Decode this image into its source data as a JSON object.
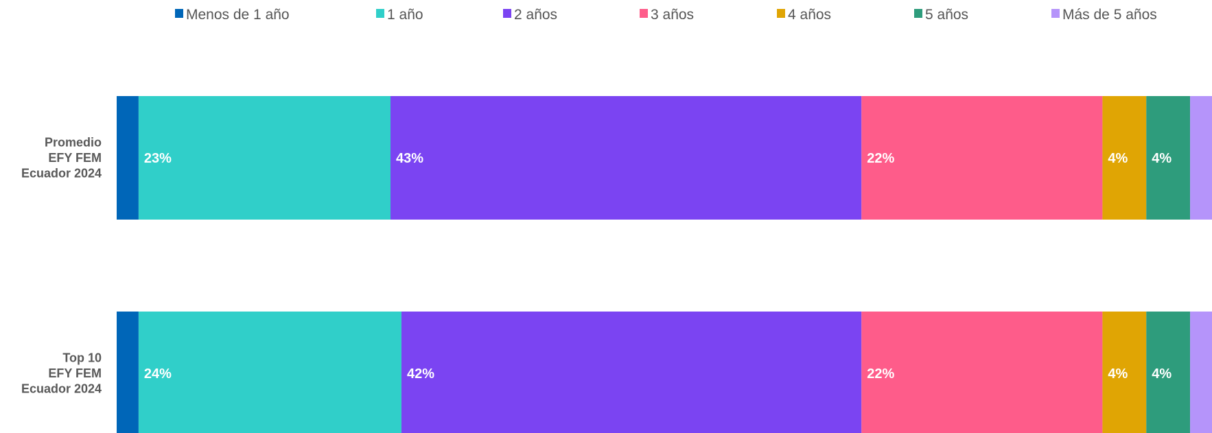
{
  "chart_data": {
    "type": "bar",
    "orientation": "horizontal",
    "stacked": true,
    "normalized": true,
    "legend_position": "top",
    "grid": false,
    "categories": [
      [
        "Promedio",
        "EFY FEM",
        "Ecuador 2024"
      ],
      [
        "Top 10",
        "EFY FEM",
        "Ecuador 2024"
      ]
    ],
    "series": [
      {
        "name": "Menos de 1 año",
        "color": "#0066b8",
        "values": [
          2,
          2
        ],
        "labels": [
          "",
          ""
        ]
      },
      {
        "name": "1 año",
        "color": "#30cfc9",
        "values": [
          23,
          24
        ],
        "labels": [
          "23%",
          "24%"
        ]
      },
      {
        "name": "2 años",
        "color": "#7b44f2",
        "values": [
          43,
          42
        ],
        "labels": [
          "43%",
          "42%"
        ]
      },
      {
        "name": "3 años",
        "color": "#fe5c8a",
        "values": [
          22,
          22
        ],
        "labels": [
          "22%",
          "22%"
        ]
      },
      {
        "name": "4 años",
        "color": "#e0a504",
        "values": [
          4,
          4
        ],
        "labels": [
          "4%",
          "4%"
        ]
      },
      {
        "name": "5 años",
        "color": "#2e9c7c",
        "values": [
          4,
          4
        ],
        "labels": [
          "4%",
          "4%"
        ]
      },
      {
        "name": "Más de 5 años",
        "color": "#b594fa",
        "values": [
          2,
          2
        ],
        "labels": [
          "",
          ""
        ]
      }
    ]
  }
}
